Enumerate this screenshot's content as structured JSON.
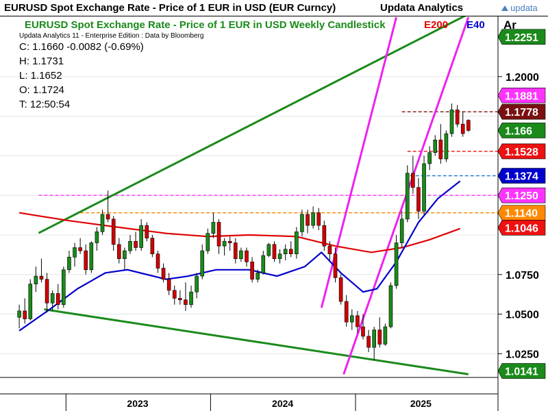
{
  "header": {
    "title": "EURUSD Spot Exchange Rate - Price of 1 EUR in USD (EUR Curncy)",
    "brand": "Updata Analytics",
    "logo_text": "updata"
  },
  "chart_data": {
    "type": "candlestick",
    "title": "EURUSD Spot Exchange Rate - Price of 1 EUR in USD Weekly Candlestick",
    "subtitle": "Updata Analytics 11 - Enterprise Edition : Data by Bloomberg",
    "axis_unit_label": "Ar",
    "ohlc_readout": [
      {
        "key": "C",
        "text": "C: 1.1660  -0.0082 (-0.69%)"
      },
      {
        "key": "H",
        "text": "H: 1.1731"
      },
      {
        "key": "L",
        "text": "L: 1.1652"
      },
      {
        "key": "O",
        "text": "O: 1.1724"
      },
      {
        "key": "T",
        "text": "T: 12:50:54"
      }
    ],
    "legend": [
      {
        "name": "E200",
        "color": "#e00000"
      },
      {
        "name": "E40",
        "color": "#0000cc"
      }
    ],
    "x_ticks": [
      "2023",
      "2024",
      "2025"
    ],
    "y_ticks": [
      "1.2000",
      "1.0750",
      "1.0500",
      "1.0250"
    ],
    "y_tick_values": [
      1.2,
      1.075,
      1.05,
      1.025
    ],
    "ylim": [
      1.01,
      1.238
    ],
    "price_tags": [
      {
        "label": "1.2251",
        "value": 1.2251,
        "bg": "#1a8a1a",
        "fg": "#ffffff"
      },
      {
        "label": "1.1881",
        "value": 1.1881,
        "bg": "#ff33ff",
        "fg": "#ffffff"
      },
      {
        "label": "1.1778",
        "value": 1.1778,
        "bg": "#7a1010",
        "fg": "#ffffff"
      },
      {
        "label": "1.166",
        "value": 1.166,
        "bg": "#1a8a1a",
        "fg": "#ffffff"
      },
      {
        "label": "1.1528",
        "value": 1.1528,
        "bg": "#ee1111",
        "fg": "#ffffff"
      },
      {
        "label": "1.1374",
        "value": 1.1374,
        "bg": "#0000cc",
        "fg": "#ffffff"
      },
      {
        "label": "1.1250",
        "value": 1.125,
        "bg": "#ff33ff",
        "fg": "#ffffff"
      },
      {
        "label": "1.1140",
        "value": 1.114,
        "bg": "#ff8800",
        "fg": "#ffffff"
      },
      {
        "label": "1.1046",
        "value": 1.1046,
        "bg": "#ee1111",
        "fg": "#ffffff"
      },
      {
        "label": "1.0141",
        "value": 1.0141,
        "bg": "#1a8a1a",
        "fg": "#ffffff"
      }
    ],
    "horizontal_levels": [
      {
        "value": 1.1778,
        "color": "#7a1010",
        "from": "2025-04-28"
      },
      {
        "value": 1.1528,
        "color": "#ee1111",
        "from": "2025-05-12"
      },
      {
        "value": 1.1374,
        "color": "#1f6fd0",
        "from": "2025-05-19"
      },
      {
        "value": 1.125,
        "color": "#ff33ff",
        "from": "2022-10-24"
      },
      {
        "value": 1.114,
        "color": "#ff8800",
        "from": "2023-02-06"
      }
    ],
    "trendlines": [
      {
        "color": "#1a8a1a",
        "points": [
          [
            "2022-10-24",
            1.1012
          ],
          [
            "2025-10-13",
            1.2395
          ]
        ]
      },
      {
        "color": "#1a8a1a",
        "points": [
          [
            "2022-11-07",
            1.053
          ],
          [
            "2025-10-13",
            1.012
          ]
        ]
      },
      {
        "color": "#ee22ee",
        "points": [
          [
            "2024-10-07",
            1.054
          ],
          [
            "2025-04-14",
            1.2375
          ]
        ]
      },
      {
        "color": "#ee22ee",
        "points": [
          [
            "2024-12-02",
            1.012
          ],
          [
            "2025-10-13",
            1.2375
          ]
        ]
      }
    ],
    "series": [
      {
        "name": "E200",
        "color": "#e00000",
        "points": [
          [
            "2022-09-05",
            1.114
          ],
          [
            "2022-10-24",
            1.112
          ],
          [
            "2023-01-09",
            1.109
          ],
          [
            "2023-05-08",
            1.105
          ],
          [
            "2023-09-11",
            1.101
          ],
          [
            "2023-12-25",
            1.099
          ],
          [
            "2024-04-08",
            1.1
          ],
          [
            "2024-08-05",
            1.099
          ],
          [
            "2024-11-11",
            1.093
          ],
          [
            "2025-02-10",
            1.089
          ],
          [
            "2025-04-28",
            1.092
          ],
          [
            "2025-07-07",
            1.097
          ],
          [
            "2025-09-22",
            1.104
          ]
        ]
      },
      {
        "name": "E40",
        "color": "#0000cc",
        "points": [
          [
            "2022-09-05",
            1.0395
          ],
          [
            "2022-11-21",
            1.053
          ],
          [
            "2023-01-30",
            1.066
          ],
          [
            "2023-04-10",
            1.076
          ],
          [
            "2023-06-05",
            1.078
          ],
          [
            "2023-09-11",
            1.072
          ],
          [
            "2023-11-06",
            1.074
          ],
          [
            "2024-01-15",
            1.078
          ],
          [
            "2024-04-08",
            1.078
          ],
          [
            "2024-06-17",
            1.074
          ],
          [
            "2024-08-26",
            1.08
          ],
          [
            "2024-10-07",
            1.089
          ],
          [
            "2024-11-25",
            1.076
          ],
          [
            "2025-01-20",
            1.064
          ],
          [
            "2025-02-24",
            1.066
          ],
          [
            "2025-04-14",
            1.083
          ],
          [
            "2025-06-09",
            1.108
          ],
          [
            "2025-07-28",
            1.123
          ],
          [
            "2025-09-22",
            1.134
          ]
        ]
      }
    ],
    "candles": [
      [
        "2022-09-05",
        1.048,
        1.056,
        1.041,
        1.052
      ],
      [
        "2022-09-19",
        1.052,
        1.06,
        1.044,
        1.047
      ],
      [
        "2022-10-03",
        1.047,
        1.072,
        1.046,
        1.069
      ],
      [
        "2022-10-17",
        1.069,
        1.08,
        1.064,
        1.074
      ],
      [
        "2022-10-31",
        1.074,
        1.085,
        1.07,
        1.072
      ],
      [
        "2022-11-14",
        1.072,
        1.076,
        1.051,
        1.057
      ],
      [
        "2022-11-28",
        1.057,
        1.065,
        1.052,
        1.063
      ],
      [
        "2022-12-12",
        1.063,
        1.069,
        1.053,
        1.056
      ],
      [
        "2022-12-26",
        1.056,
        1.08,
        1.054,
        1.078
      ],
      [
        "2023-01-09",
        1.078,
        1.09,
        1.076,
        1.086
      ],
      [
        "2023-01-23",
        1.086,
        1.095,
        1.08,
        1.092
      ],
      [
        "2023-02-06",
        1.092,
        1.098,
        1.088,
        1.09
      ],
      [
        "2023-02-20",
        1.09,
        1.094,
        1.075,
        1.078
      ],
      [
        "2023-03-06",
        1.078,
        1.096,
        1.076,
        1.095
      ],
      [
        "2023-03-20",
        1.095,
        1.105,
        1.09,
        1.102
      ],
      [
        "2023-04-03",
        1.102,
        1.116,
        1.1,
        1.113
      ],
      [
        "2023-04-17",
        1.113,
        1.128,
        1.108,
        1.11
      ],
      [
        "2023-05-01",
        1.11,
        1.112,
        1.09,
        1.094
      ],
      [
        "2023-05-15",
        1.094,
        1.098,
        1.082,
        1.085
      ],
      [
        "2023-05-29",
        1.085,
        1.092,
        1.078,
        1.09
      ],
      [
        "2023-06-12",
        1.09,
        1.1,
        1.088,
        1.096
      ],
      [
        "2023-06-26",
        1.096,
        1.102,
        1.09,
        1.092
      ],
      [
        "2023-07-10",
        1.092,
        1.11,
        1.09,
        1.106
      ],
      [
        "2023-07-24",
        1.106,
        1.108,
        1.096,
        1.098
      ],
      [
        "2023-08-07",
        1.098,
        1.1,
        1.086,
        1.088
      ],
      [
        "2023-08-21",
        1.088,
        1.09,
        1.076,
        1.079
      ],
      [
        "2023-09-04",
        1.079,
        1.082,
        1.07,
        1.072
      ],
      [
        "2023-09-18",
        1.072,
        1.076,
        1.062,
        1.065
      ],
      [
        "2023-10-02",
        1.065,
        1.068,
        1.056,
        1.06
      ],
      [
        "2023-10-16",
        1.06,
        1.065,
        1.056,
        1.059
      ],
      [
        "2023-10-30",
        1.059,
        1.07,
        1.052,
        1.056
      ],
      [
        "2023-11-13",
        1.056,
        1.068,
        1.054,
        1.064
      ],
      [
        "2023-11-27",
        1.064,
        1.076,
        1.06,
        1.074
      ],
      [
        "2023-12-11",
        1.074,
        1.094,
        1.072,
        1.09
      ],
      [
        "2023-12-25",
        1.09,
        1.104,
        1.088,
        1.101
      ],
      [
        "2024-01-08",
        1.101,
        1.114,
        1.098,
        1.108
      ],
      [
        "2024-01-22",
        1.108,
        1.11,
        1.088,
        1.093
      ],
      [
        "2024-02-05",
        1.093,
        1.098,
        1.087,
        1.096
      ],
      [
        "2024-02-19",
        1.096,
        1.099,
        1.09,
        1.095
      ],
      [
        "2024-03-04",
        1.095,
        1.098,
        1.082,
        1.085
      ],
      [
        "2024-03-18",
        1.085,
        1.092,
        1.083,
        1.09
      ],
      [
        "2024-04-01",
        1.09,
        1.092,
        1.08,
        1.083
      ],
      [
        "2024-04-15",
        1.083,
        1.086,
        1.07,
        1.072
      ],
      [
        "2024-04-29",
        1.072,
        1.078,
        1.07,
        1.076
      ],
      [
        "2024-05-13",
        1.076,
        1.09,
        1.075,
        1.087
      ],
      [
        "2024-05-27",
        1.087,
        1.095,
        1.086,
        1.094
      ],
      [
        "2024-06-10",
        1.094,
        1.096,
        1.083,
        1.085
      ],
      [
        "2024-06-24",
        1.085,
        1.091,
        1.082,
        1.088
      ],
      [
        "2024-07-08",
        1.088,
        1.094,
        1.084,
        1.091
      ],
      [
        "2024-07-22",
        1.091,
        1.096,
        1.086,
        1.088
      ],
      [
        "2024-08-05",
        1.088,
        1.105,
        1.085,
        1.102
      ],
      [
        "2024-08-19",
        1.102,
        1.116,
        1.099,
        1.113
      ],
      [
        "2024-09-02",
        1.113,
        1.116,
        1.101,
        1.106
      ],
      [
        "2024-09-16",
        1.106,
        1.118,
        1.104,
        1.114
      ],
      [
        "2024-09-30",
        1.114,
        1.117,
        1.103,
        1.106
      ],
      [
        "2024-10-14",
        1.106,
        1.109,
        1.09,
        1.093
      ],
      [
        "2024-10-28",
        1.093,
        1.096,
        1.084,
        1.088
      ],
      [
        "2024-11-11",
        1.088,
        1.092,
        1.07,
        1.073
      ],
      [
        "2024-11-25",
        1.073,
        1.075,
        1.056,
        1.058
      ],
      [
        "2024-12-09",
        1.058,
        1.062,
        1.042,
        1.045
      ],
      [
        "2024-12-23",
        1.045,
        1.053,
        1.04,
        1.049
      ],
      [
        "2025-01-06",
        1.049,
        1.052,
        1.038,
        1.042
      ],
      [
        "2025-01-20",
        1.042,
        1.05,
        1.034,
        1.036
      ],
      [
        "2025-02-03",
        1.036,
        1.04,
        1.026,
        1.029
      ],
      [
        "2025-02-17",
        1.029,
        1.042,
        1.021,
        1.04
      ],
      [
        "2025-03-03",
        1.04,
        1.048,
        1.029,
        1.031
      ],
      [
        "2025-03-17",
        1.031,
        1.044,
        1.03,
        1.042
      ],
      [
        "2025-03-31",
        1.042,
        1.07,
        1.041,
        1.068
      ],
      [
        "2025-04-14",
        1.068,
        1.1,
        1.066,
        1.095
      ],
      [
        "2025-04-28",
        1.095,
        1.115,
        1.092,
        1.11
      ],
      [
        "2025-05-12",
        1.11,
        1.144,
        1.108,
        1.139
      ],
      [
        "2025-05-26",
        1.139,
        1.15,
        1.126,
        1.13
      ],
      [
        "2025-06-09",
        1.13,
        1.136,
        1.11,
        1.115
      ],
      [
        "2025-06-23",
        1.115,
        1.15,
        1.113,
        1.145
      ],
      [
        "2025-07-07",
        1.145,
        1.156,
        1.141,
        1.152
      ],
      [
        "2025-07-21",
        1.152,
        1.163,
        1.15,
        1.16
      ],
      [
        "2025-08-04",
        1.16,
        1.17,
        1.145,
        1.148
      ],
      [
        "2025-08-18",
        1.148,
        1.166,
        1.146,
        1.164
      ],
      [
        "2025-09-01",
        1.164,
        1.183,
        1.162,
        1.179
      ],
      [
        "2025-09-15",
        1.179,
        1.182,
        1.168,
        1.17
      ],
      [
        "2025-09-29",
        1.17,
        1.178,
        1.162,
        1.164
      ],
      [
        "2025-10-13",
        1.1724,
        1.1731,
        1.1652,
        1.166
      ]
    ]
  }
}
